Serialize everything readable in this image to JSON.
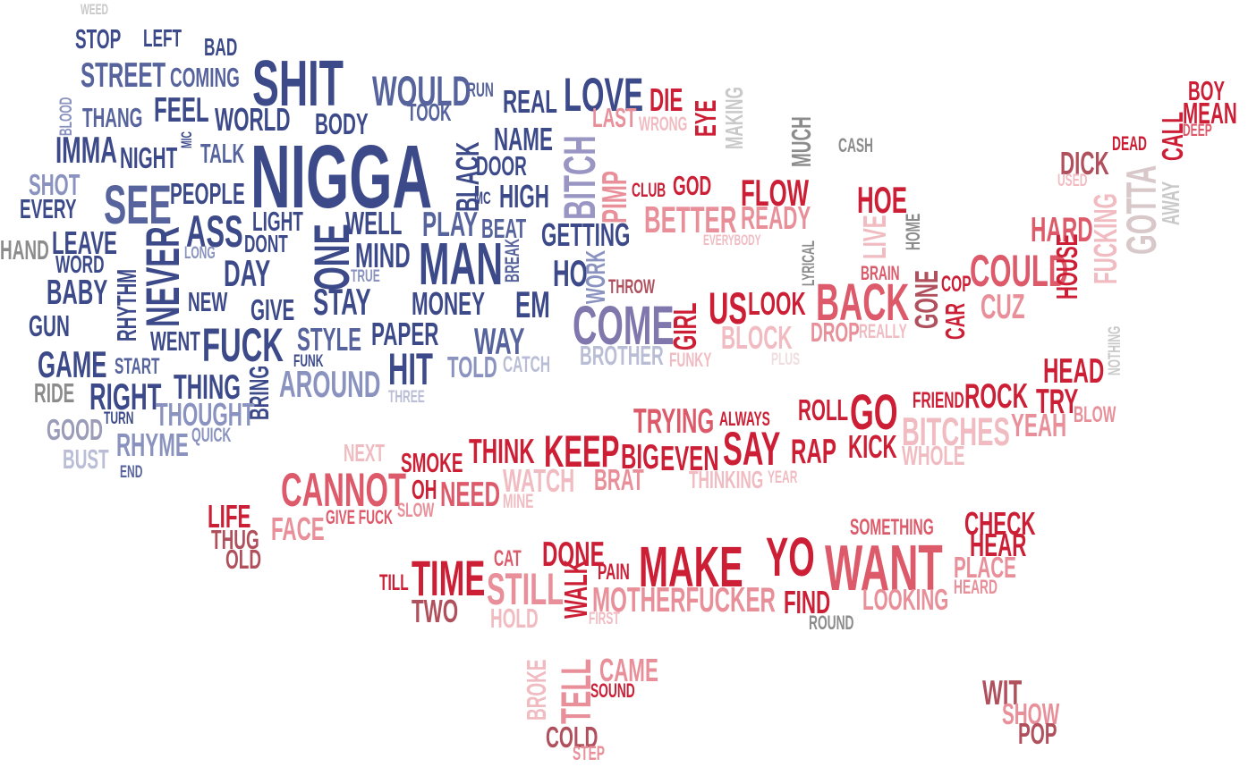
{
  "words": [
    {
      "text": "WEED",
      "color": "#c9c9c9"
    },
    {
      "text": "STOP",
      "color": "#3d4a8a"
    },
    {
      "text": "LEFT",
      "color": "#3d4a8a"
    },
    {
      "text": "BAD",
      "color": "#3d4a8a"
    },
    {
      "text": "SHIT",
      "color": "#3d4a8a"
    },
    {
      "text": "STREET",
      "color": "#56639c"
    },
    {
      "text": "COMING",
      "color": "#56639c"
    },
    {
      "text": "WOULD",
      "color": "#56639c"
    },
    {
      "text": "RUN",
      "color": "#56639c"
    },
    {
      "text": "LOVE",
      "color": "#3d4a8a"
    },
    {
      "text": "DIE",
      "color": "#cc1f36"
    },
    {
      "text": "EYE",
      "color": "#cc1f36"
    },
    {
      "text": "MAKING",
      "color": "#c9c9c9"
    },
    {
      "text": "BLOOD",
      "color": "#8a93bf"
    },
    {
      "text": "THANG",
      "color": "#56639c"
    },
    {
      "text": "FEEL",
      "color": "#3d4a8a"
    },
    {
      "text": "WORLD",
      "color": "#3d4a8a"
    },
    {
      "text": "BODY",
      "color": "#3d4a8a"
    },
    {
      "text": "TOOK",
      "color": "#56639c"
    },
    {
      "text": "REAL",
      "color": "#3d4a8a"
    },
    {
      "text": "LAST",
      "color": "#e88f99"
    },
    {
      "text": "WRONG",
      "color": "#f0bcc2"
    },
    {
      "text": "MUCH",
      "color": "#8c8c8c"
    },
    {
      "text": "CASH",
      "color": "#8c8c8c"
    },
    {
      "text": "BOY",
      "color": "#cc1f36"
    },
    {
      "text": "MEAN",
      "color": "#cc1f36"
    },
    {
      "text": "CALL",
      "color": "#cc1f36"
    },
    {
      "text": "DEEP",
      "color": "#dd5a6a"
    },
    {
      "text": "DEAD",
      "color": "#cc1f36"
    },
    {
      "text": "DICK",
      "color": "#b0505c"
    },
    {
      "text": "USED",
      "color": "#f0bcc2"
    },
    {
      "text": "GOTTA",
      "color": "#d8c8ca"
    },
    {
      "text": "AWAY",
      "color": "#c9c9c9"
    },
    {
      "text": "FUCKING",
      "color": "#f0bcc2"
    },
    {
      "text": "IMMA",
      "color": "#3d4a8a"
    },
    {
      "text": "NIGHT",
      "color": "#3d4a8a"
    },
    {
      "text": "MIC",
      "color": "#3d4a8a"
    },
    {
      "text": "TALK",
      "color": "#56639c"
    },
    {
      "text": "NIGGA",
      "color": "#3d4a8a"
    },
    {
      "text": "BLACK",
      "color": "#3d4a8a"
    },
    {
      "text": "NAME",
      "color": "#3d4a8a"
    },
    {
      "text": "DOOR",
      "color": "#3d4a8a"
    },
    {
      "text": "BITCH",
      "color": "#9a96c4"
    },
    {
      "text": "CLUB",
      "color": "#cc1f36"
    },
    {
      "text": "GOD",
      "color": "#cc1f36"
    },
    {
      "text": "FLOW",
      "color": "#cc1f36"
    },
    {
      "text": "HOE",
      "color": "#cc1f36"
    },
    {
      "text": "SHOT",
      "color": "#8a93bf"
    },
    {
      "text": "EVERY",
      "color": "#3d4a8a"
    },
    {
      "text": "SEE",
      "color": "#56639c"
    },
    {
      "text": "PEOPLE",
      "color": "#3d4a8a"
    },
    {
      "text": "MC",
      "color": "#3d4a8a"
    },
    {
      "text": "HIGH",
      "color": "#3d4a8a"
    },
    {
      "text": "PIMP",
      "color": "#e88f99"
    },
    {
      "text": "BETTER",
      "color": "#e88f99"
    },
    {
      "text": "READY",
      "color": "#e88f99"
    },
    {
      "text": "LIVE",
      "color": "#f0bcc2"
    },
    {
      "text": "HOME",
      "color": "#8c8c8c"
    },
    {
      "text": "HARD",
      "color": "#dd5a6a"
    },
    {
      "text": "HAND",
      "color": "#8c8c8c"
    },
    {
      "text": "LEAVE",
      "color": "#3d4a8a"
    },
    {
      "text": "LIGHT",
      "color": "#3d4a8a"
    },
    {
      "text": "WELL",
      "color": "#3d4a8a"
    },
    {
      "text": "PLAY",
      "color": "#56639c"
    },
    {
      "text": "BEAT",
      "color": "#56639c"
    },
    {
      "text": "GETTING",
      "color": "#3d4a8a"
    },
    {
      "text": "EVERYBODY",
      "color": "#f0bcc2"
    },
    {
      "text": "ASS",
      "color": "#3d4a8a"
    },
    {
      "text": "DONT",
      "color": "#3d4a8a"
    },
    {
      "text": "LONG",
      "color": "#8a93bf"
    },
    {
      "text": "ONE",
      "color": "#3d4a8a"
    },
    {
      "text": "WORD",
      "color": "#3d4a8a"
    },
    {
      "text": "MIND",
      "color": "#3d4a8a"
    },
    {
      "text": "MAN",
      "color": "#3d4a8a"
    },
    {
      "text": "BREAK",
      "color": "#56639c"
    },
    {
      "text": "LYRICAL",
      "color": "#8c8c8c"
    },
    {
      "text": "BRAIN",
      "color": "#dd5a6a"
    },
    {
      "text": "COP",
      "color": "#cc1f36"
    },
    {
      "text": "COULD",
      "color": "#dd5a6a"
    },
    {
      "text": "HOUSE",
      "color": "#cc1f36"
    },
    {
      "text": "DAY",
      "color": "#3d4a8a"
    },
    {
      "text": "TRUE",
      "color": "#8a93bf"
    },
    {
      "text": "HO",
      "color": "#3d4a8a"
    },
    {
      "text": "WORK",
      "color": "#8a93bf"
    },
    {
      "text": "THROW",
      "color": "#b0505c"
    },
    {
      "text": "BABY",
      "color": "#3d4a8a"
    },
    {
      "text": "RHYTHM",
      "color": "#3d4a8a"
    },
    {
      "text": "NEVER",
      "color": "#3d4a8a"
    },
    {
      "text": "NEW",
      "color": "#3d4a8a"
    },
    {
      "text": "GIVE",
      "color": "#3d4a8a"
    },
    {
      "text": "STAY",
      "color": "#3d4a8a"
    },
    {
      "text": "MONEY",
      "color": "#3d4a8a"
    },
    {
      "text": "EM",
      "color": "#3d4a8a"
    },
    {
      "text": "COME",
      "color": "#8078ad"
    },
    {
      "text": "GIRL",
      "color": "#cc1f36"
    },
    {
      "text": "US",
      "color": "#cc1f36"
    },
    {
      "text": "LOOK",
      "color": "#cc1f36"
    },
    {
      "text": "BACK",
      "color": "#dd5a6a"
    },
    {
      "text": "GONE",
      "color": "#b0505c"
    },
    {
      "text": "CAR",
      "color": "#cc1f36"
    },
    {
      "text": "CUZ",
      "color": "#e88f99"
    },
    {
      "text": "GUN",
      "color": "#3d4a8a"
    },
    {
      "text": "WENT",
      "color": "#3d4a8a"
    },
    {
      "text": "FUCK",
      "color": "#3d4a8a"
    },
    {
      "text": "STYLE",
      "color": "#56639c"
    },
    {
      "text": "PAPER",
      "color": "#3d4a8a"
    },
    {
      "text": "WAY",
      "color": "#56639c"
    },
    {
      "text": "BLOCK",
      "color": "#f0bcc2"
    },
    {
      "text": "DROP",
      "color": "#e88f99"
    },
    {
      "text": "REALLY",
      "color": "#f0bcc2"
    },
    {
      "text": "NOTHING",
      "color": "#c9c9c9"
    },
    {
      "text": "GAME",
      "color": "#3d4a8a"
    },
    {
      "text": "START",
      "color": "#56639c"
    },
    {
      "text": "FUNK",
      "color": "#3d4a8a"
    },
    {
      "text": "AROUND",
      "color": "#8a93bf"
    },
    {
      "text": "HIT",
      "color": "#3d4a8a"
    },
    {
      "text": "TOLD",
      "color": "#8a93bf"
    },
    {
      "text": "CATCH",
      "color": "#b9bdd6"
    },
    {
      "text": "BROTHER",
      "color": "#b9bdd6"
    },
    {
      "text": "FUNKY",
      "color": "#f0bcc2"
    },
    {
      "text": "PLUS",
      "color": "#f0dde0"
    },
    {
      "text": "HEAD",
      "color": "#cc1f36"
    },
    {
      "text": "RIDE",
      "color": "#8c8c8c"
    },
    {
      "text": "RIGHT",
      "color": "#3d4a8a"
    },
    {
      "text": "THING",
      "color": "#3d4a8a"
    },
    {
      "text": "BRING",
      "color": "#3d4a8a"
    },
    {
      "text": "THREE",
      "color": "#b9bdd6"
    },
    {
      "text": "ROLL",
      "color": "#cc1f36"
    },
    {
      "text": "GO",
      "color": "#cc1f36"
    },
    {
      "text": "FRIEND",
      "color": "#cc1f36"
    },
    {
      "text": "ROCK",
      "color": "#cc1f36"
    },
    {
      "text": "TRY",
      "color": "#cc1f36"
    },
    {
      "text": "BLOW",
      "color": "#e88f99"
    },
    {
      "text": "TURN",
      "color": "#3d4a8a"
    },
    {
      "text": "THOUGHT",
      "color": "#8a93bf"
    },
    {
      "text": "TRYING",
      "color": "#dd5a6a"
    },
    {
      "text": "ALWAYS",
      "color": "#cc1f36"
    },
    {
      "text": "BITCHES",
      "color": "#f0bcc2"
    },
    {
      "text": "YEAH",
      "color": "#e88f99"
    },
    {
      "text": "GOOD",
      "color": "#9a9cb8"
    },
    {
      "text": "RHYME",
      "color": "#8a93bf"
    },
    {
      "text": "QUICK",
      "color": "#8a93bf"
    },
    {
      "text": "KICK",
      "color": "#cc1f36"
    },
    {
      "text": "NEXT",
      "color": "#f0bcc2"
    },
    {
      "text": "SMOKE",
      "color": "#cc1f36"
    },
    {
      "text": "THINK",
      "color": "#cc1f36"
    },
    {
      "text": "KEEP",
      "color": "#cc1f36"
    },
    {
      "text": "BIG",
      "color": "#cc1f36"
    },
    {
      "text": "EVEN",
      "color": "#cc1f36"
    },
    {
      "text": "SAY",
      "color": "#cc1f36"
    },
    {
      "text": "RAP",
      "color": "#cc1f36"
    },
    {
      "text": "WHOLE",
      "color": "#f0bcc2"
    },
    {
      "text": "BUST",
      "color": "#b9bdd6"
    },
    {
      "text": "END",
      "color": "#56639c"
    },
    {
      "text": "CANNOT",
      "color": "#dd5a6a"
    },
    {
      "text": "OH",
      "color": "#cc1f36"
    },
    {
      "text": "NEED",
      "color": "#dd5a6a"
    },
    {
      "text": "WATCH",
      "color": "#f0bcc2"
    },
    {
      "text": "BRAT",
      "color": "#e88f99"
    },
    {
      "text": "THINKING",
      "color": "#f0bcc2"
    },
    {
      "text": "YEAR",
      "color": "#f0bcc2"
    },
    {
      "text": "MINE",
      "color": "#f0bcc2"
    },
    {
      "text": "LIFE",
      "color": "#cc1f36"
    },
    {
      "text": "GIVE FUCK",
      "color": "#dd5a6a"
    },
    {
      "text": "SLOW",
      "color": "#e88f99"
    },
    {
      "text": "FACE",
      "color": "#e88f99"
    },
    {
      "text": "SOMETHING",
      "color": "#dd5a6a"
    },
    {
      "text": "CHECK",
      "color": "#cc1f36"
    },
    {
      "text": "HEAR",
      "color": "#cc1f36"
    },
    {
      "text": "THUG",
      "color": "#b0505c"
    },
    {
      "text": "OLD",
      "color": "#b0505c"
    },
    {
      "text": "CAT",
      "color": "#dd5a6a"
    },
    {
      "text": "DONE",
      "color": "#cc1f36"
    },
    {
      "text": "PAIN",
      "color": "#cc1f36"
    },
    {
      "text": "MAKE",
      "color": "#cc1f36"
    },
    {
      "text": "YO",
      "color": "#cc1f36"
    },
    {
      "text": "WANT",
      "color": "#dd5a6a"
    },
    {
      "text": "PLACE",
      "color": "#e88f99"
    },
    {
      "text": "TILL",
      "color": "#cc1f36"
    },
    {
      "text": "TIME",
      "color": "#cc1f36"
    },
    {
      "text": "STILL",
      "color": "#e88f99"
    },
    {
      "text": "WALK",
      "color": "#cc1f36"
    },
    {
      "text": "MOTHERFUCKER",
      "color": "#e88f99"
    },
    {
      "text": "FIND",
      "color": "#cc1f36"
    },
    {
      "text": "LOOKING",
      "color": "#e88f99"
    },
    {
      "text": "HEARD",
      "color": "#e88f99"
    },
    {
      "text": "TWO",
      "color": "#b0505c"
    },
    {
      "text": "HOLD",
      "color": "#f0bcc2"
    },
    {
      "text": "FIRST",
      "color": "#f0bcc2"
    },
    {
      "text": "ROUND",
      "color": "#8c8c8c"
    },
    {
      "text": "BROKE",
      "color": "#f0bcc2"
    },
    {
      "text": "TELL",
      "color": "#e88f99"
    },
    {
      "text": "CAME",
      "color": "#e88f99"
    },
    {
      "text": "SOUND",
      "color": "#cc1f36"
    },
    {
      "text": "WIT",
      "color": "#b0505c"
    },
    {
      "text": "SHOW",
      "color": "#e88f99"
    },
    {
      "text": "POP",
      "color": "#b0505c"
    },
    {
      "text": "COLD",
      "color": "#b0505c"
    },
    {
      "text": "STEP",
      "color": "#e88f99"
    }
  ]
}
